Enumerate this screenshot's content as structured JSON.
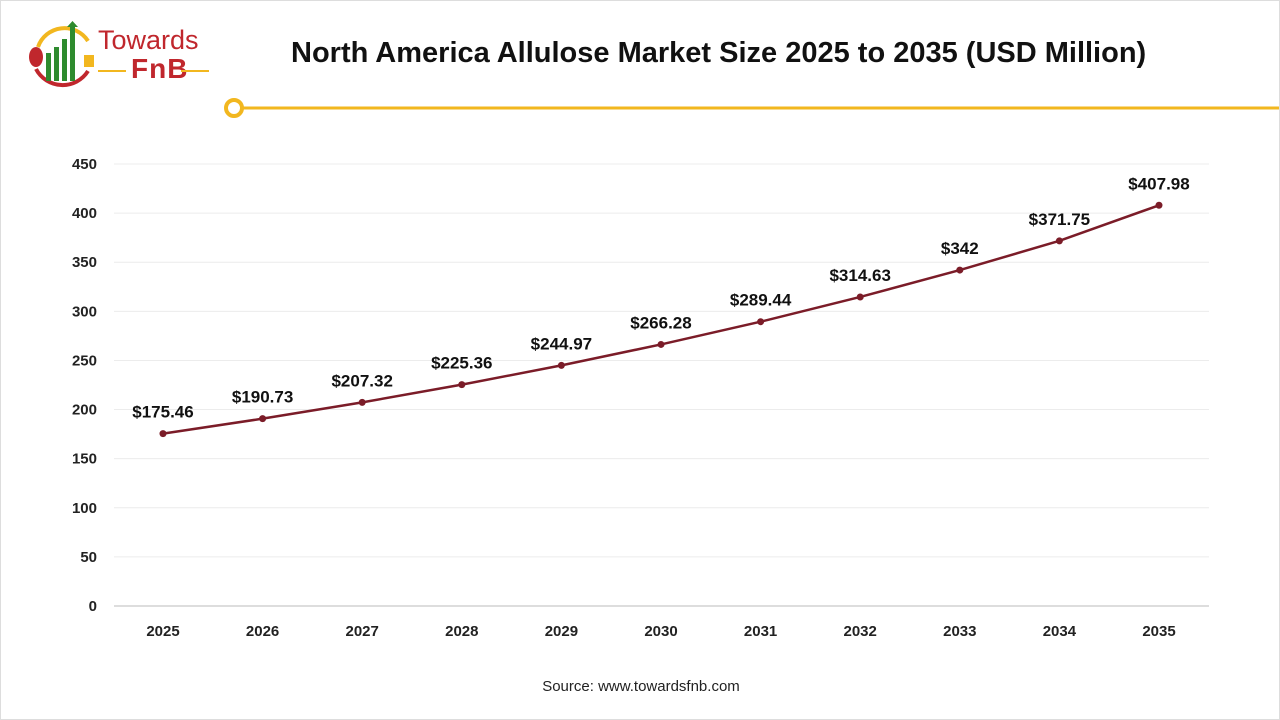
{
  "header": {
    "title": "North America Allulose Market Size 2025 to 2035 (USD Million)",
    "logo_text_1": "Towards",
    "logo_text_2": "FnB"
  },
  "colors": {
    "line": "#7b1c28",
    "accent": "#f2b71f",
    "brand_red": "#c0272d",
    "brand_green": "#2e8b2e"
  },
  "source": "Source: www.towardsfnb.com",
  "chart_data": {
    "type": "line",
    "title": "North America Allulose Market Size 2025 to 2035 (USD Million)",
    "categories": [
      "2025",
      "2026",
      "2027",
      "2028",
      "2029",
      "2030",
      "2031",
      "2032",
      "2033",
      "2034",
      "2035"
    ],
    "values": [
      175.46,
      190.73,
      207.32,
      225.36,
      244.97,
      266.28,
      289.44,
      314.63,
      342,
      371.75,
      407.98
    ],
    "data_labels": [
      "$175.46",
      "$190.73",
      "$207.32",
      "$225.36",
      "$244.97",
      "$266.28",
      "$289.44",
      "$314.63",
      "$342",
      "$371.75",
      "$407.98"
    ],
    "ylim": [
      0,
      450
    ],
    "yticks": [
      "0",
      "50",
      "100",
      "150",
      "200",
      "250",
      "300",
      "350",
      "400",
      "450"
    ],
    "grid": true,
    "legend": "none"
  }
}
